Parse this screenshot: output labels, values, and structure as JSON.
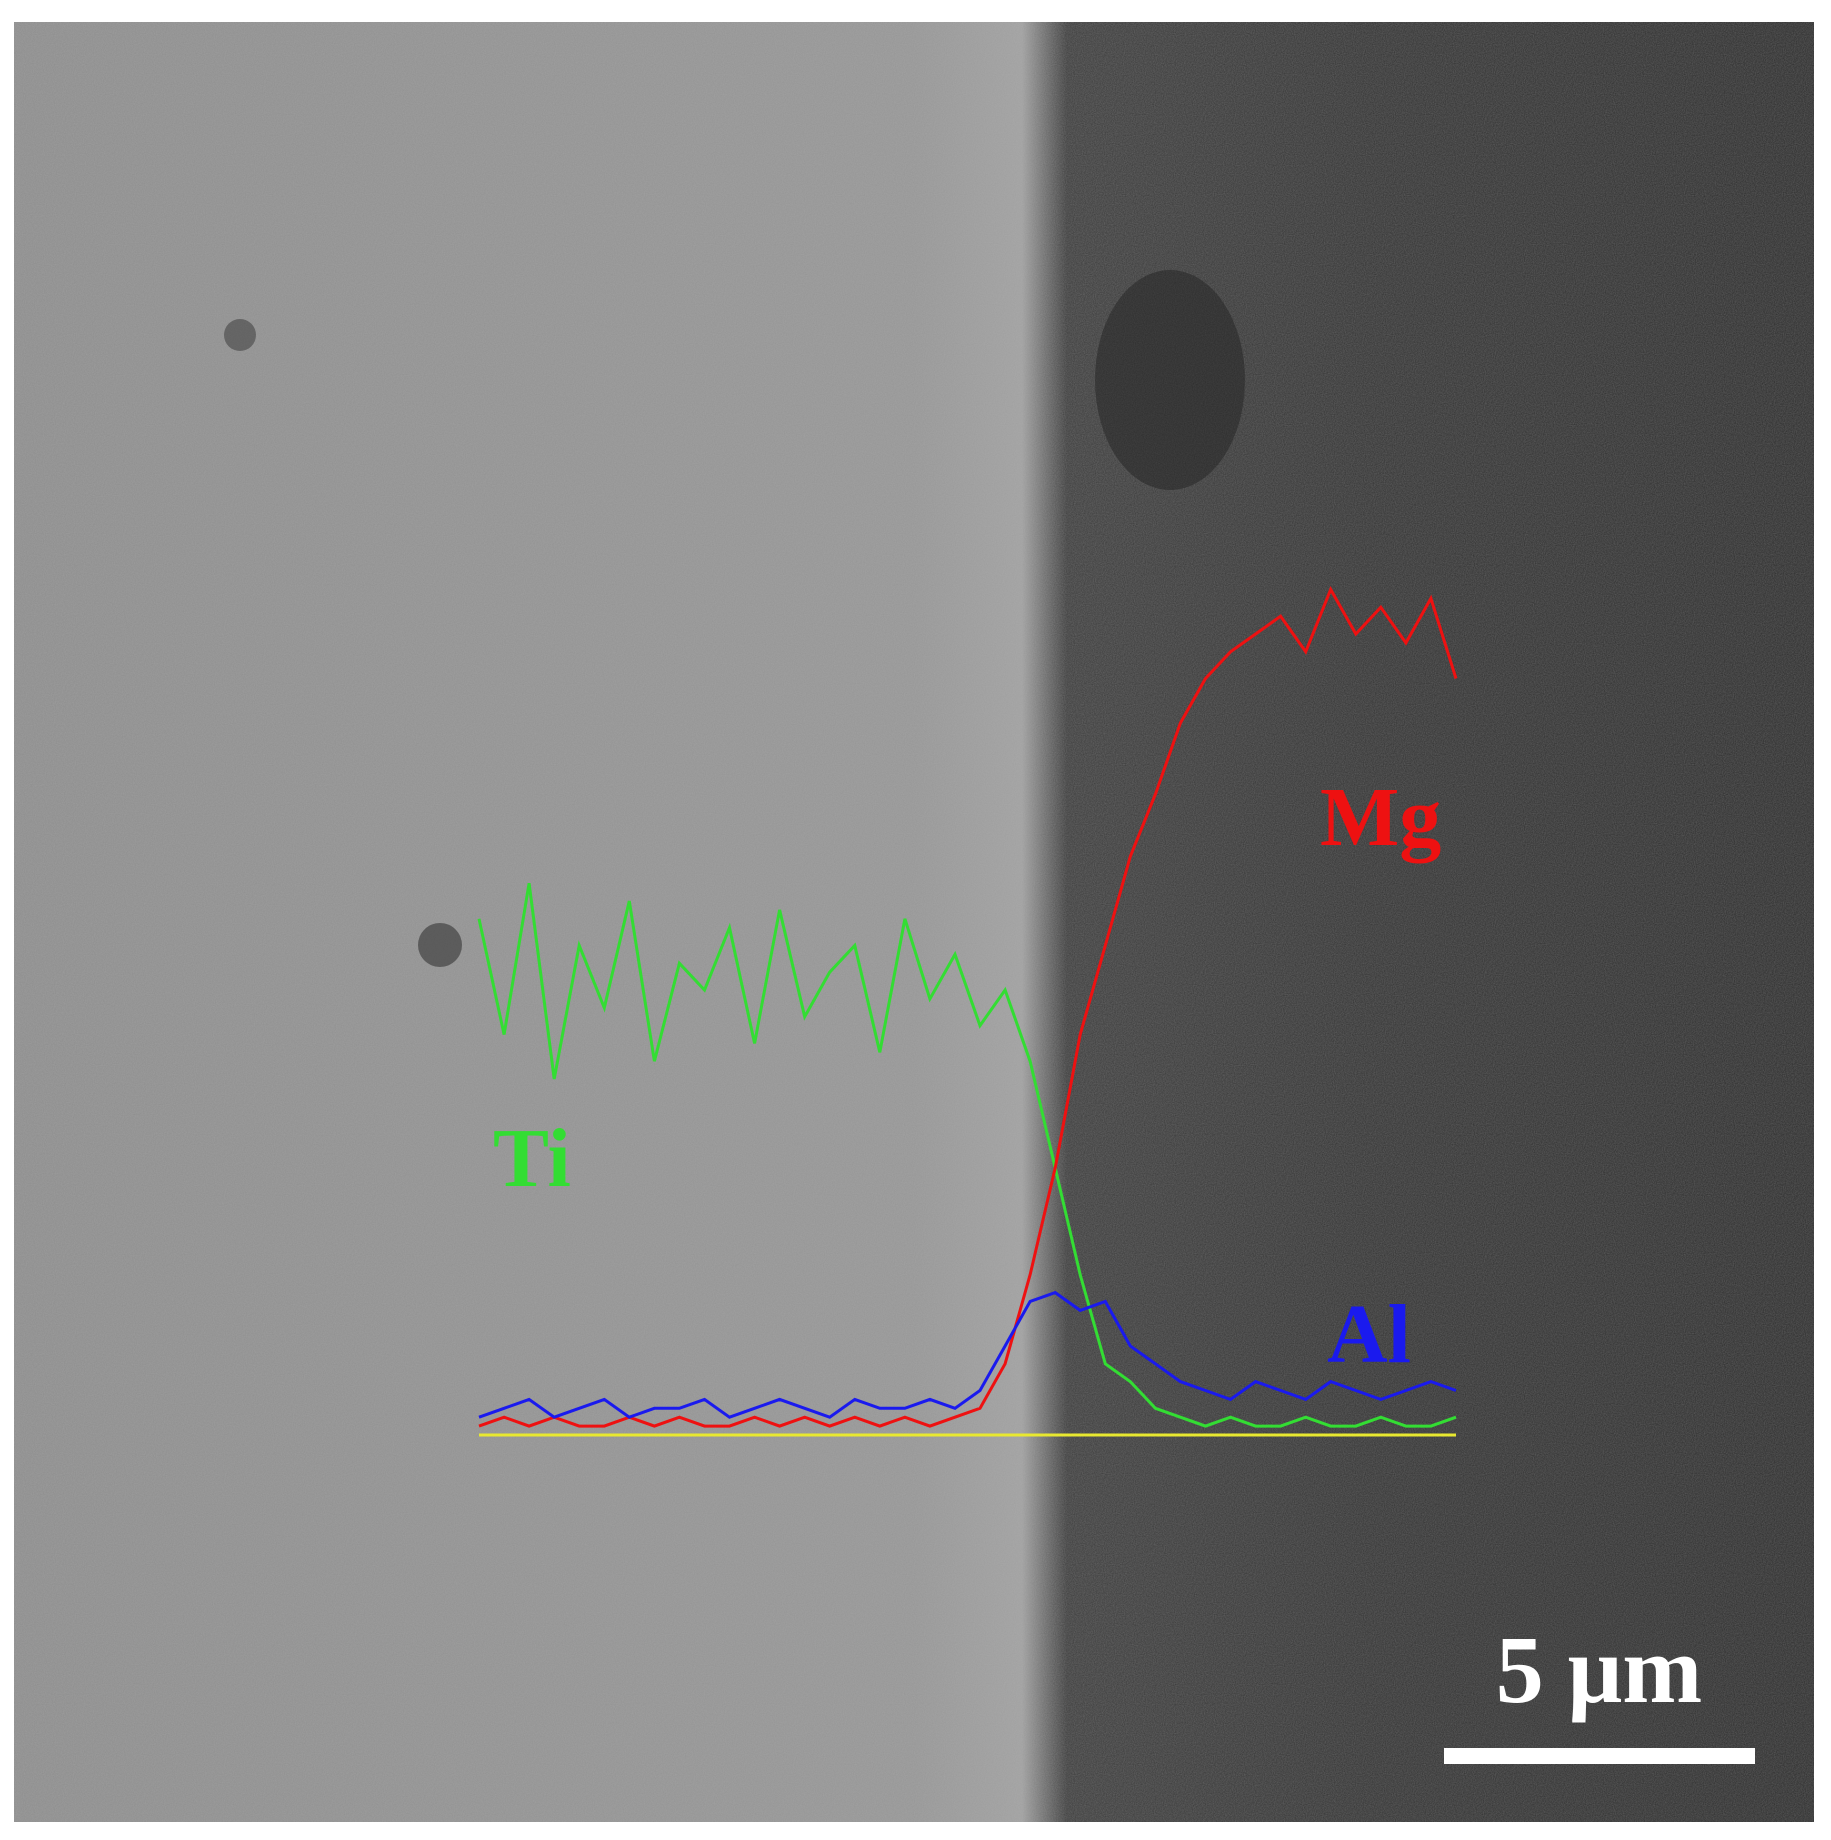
{
  "chart_data": {
    "type": "line",
    "series": [
      {
        "name": "Ti",
        "color": "#33dd33",
        "values": [
          58,
          45,
          62,
          40,
          55,
          48,
          60,
          42,
          53,
          50,
          57,
          44,
          59,
          47,
          52,
          55,
          43,
          58,
          49,
          54,
          46,
          50,
          42,
          30,
          18,
          8,
          6,
          3,
          2,
          1,
          2,
          1,
          1,
          2,
          1,
          1,
          2,
          1,
          1,
          2
        ]
      },
      {
        "name": "Mg",
        "color": "#ee1111",
        "values": [
          1,
          2,
          1,
          2,
          1,
          1,
          2,
          1,
          2,
          1,
          1,
          2,
          1,
          2,
          1,
          2,
          1,
          2,
          1,
          2,
          3,
          8,
          18,
          30,
          45,
          55,
          65,
          72,
          80,
          85,
          88,
          90,
          92,
          88,
          95,
          90,
          93,
          89,
          94,
          85
        ]
      },
      {
        "name": "Al",
        "color": "#1a1aee",
        "values": [
          2,
          3,
          4,
          2,
          3,
          4,
          2,
          3,
          3,
          4,
          2,
          3,
          4,
          3,
          2,
          4,
          3,
          3,
          4,
          3,
          5,
          10,
          15,
          16,
          14,
          15,
          10,
          8,
          6,
          5,
          4,
          6,
          5,
          4,
          6,
          5,
          4,
          5,
          6,
          5
        ]
      }
    ],
    "scale_bar": "5 μm"
  }
}
